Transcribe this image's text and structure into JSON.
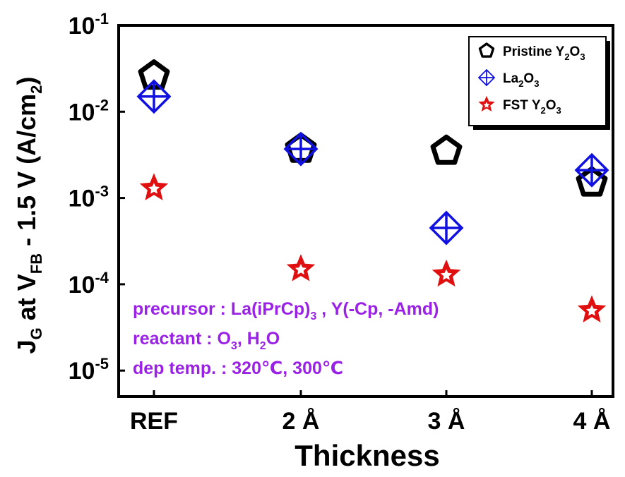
{
  "chart_data": {
    "type": "scatter",
    "categories": [
      "REF",
      "2 Å",
      "3 Å",
      "4 Å"
    ],
    "xlabel": "Thickness",
    "ylabel": {
      "main": "J",
      "sub1": "G",
      "mid": " at V",
      "sub2": "FB",
      "tail": " - 1.5 V (A/cm",
      "sup": "2",
      "end": ")"
    },
    "yscale": "log",
    "ylim": [
      5e-06,
      0.1
    ],
    "yticks": [
      {
        "base": "10",
        "exp": "-1",
        "value": 0.1
      },
      {
        "base": "10",
        "exp": "-2",
        "value": 0.01
      },
      {
        "base": "10",
        "exp": "-3",
        "value": 0.001
      },
      {
        "base": "10",
        "exp": "-4",
        "value": 0.0001
      },
      {
        "base": "10",
        "exp": "-5",
        "value": 1e-05
      }
    ],
    "series": [
      {
        "key": "pristine",
        "legend": [
          {
            "t": "Pristine Y"
          },
          {
            "t": "2",
            "sub": true
          },
          {
            "t": "O"
          },
          {
            "t": "3",
            "sub": true
          }
        ],
        "marker": "pentagon",
        "color": "#000000",
        "values": [
          0.026,
          0.0037,
          0.0035,
          0.0015
        ]
      },
      {
        "key": "la2o3",
        "legend": [
          {
            "t": "La"
          },
          {
            "t": "2",
            "sub": true
          },
          {
            "t": "O"
          },
          {
            "t": "3",
            "sub": true
          }
        ],
        "marker": "diamond-plus",
        "color": "#1010e0",
        "values": [
          0.015,
          0.0037,
          0.00045,
          0.0021
        ]
      },
      {
        "key": "fst",
        "legend": [
          {
            "t": "FST Y"
          },
          {
            "t": "2",
            "sub": true
          },
          {
            "t": "O"
          },
          {
            "t": "3",
            "sub": true
          }
        ],
        "marker": "star",
        "color": "#e01010",
        "values": [
          0.0013,
          0.00015,
          0.00013,
          5e-05
        ]
      }
    ],
    "legend_position": "top-right",
    "annotations": [
      [
        {
          "t": "precursor : La(iPrCp)"
        },
        {
          "t": "3",
          "sub": true
        },
        {
          "t": " , Y(-Cp, -Amd)"
        }
      ],
      [
        {
          "t": "reactant : O"
        },
        {
          "t": "3",
          "sub": true
        },
        {
          "t": ", H"
        },
        {
          "t": "2",
          "sub": true
        },
        {
          "t": "O"
        }
      ],
      [
        {
          "t": "dep temp. : 320℃, 300℃"
        }
      ]
    ],
    "annotation_color": "#9a22e6",
    "grid": false
  }
}
